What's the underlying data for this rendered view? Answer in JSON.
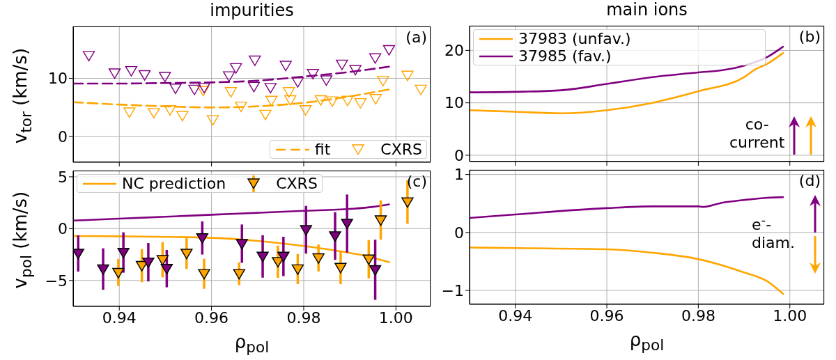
{
  "chart_data": [
    {
      "type": "scatter",
      "title": "impurities",
      "ylabel": "v$_{tor}$ (km/s)",
      "xlim": [
        0.93,
        1.0075
      ],
      "xticks": [
        0.94,
        0.96,
        0.98,
        1
      ],
      "ylim": [
        -4.4,
        18.9
      ],
      "yticks": [
        0,
        10
      ],
      "tick_labels": "y",
      "grid": true,
      "legend": "bottom right",
      "annotations": [
        "(a)"
      ],
      "series": [
        {
          "type": "line",
          "name": "fit",
          "color": "#ffa500",
          "line_style": "dashed",
          "x": [
            0.93,
            0.94,
            0.95,
            0.96,
            0.97,
            0.98,
            0.99,
            0.9985
          ],
          "values": [
            5.9,
            5.5,
            5.2,
            5.0,
            5.2,
            5.8,
            6.9,
            8.1
          ]
        },
        {
          "type": "line",
          "color": "#800080",
          "line_style": "dashed",
          "x": [
            0.93,
            0.94,
            0.95,
            0.96,
            0.97,
            0.98,
            0.99,
            0.9985
          ],
          "values": [
            9.1,
            9.1,
            9.2,
            9.3,
            9.6,
            10.3,
            11.1,
            12.0
          ]
        },
        {
          "name": "CXRS",
          "color": "#ffa500",
          "marker": "triangle",
          "x": [
            0.9422,
            0.9475,
            0.951,
            0.9537,
            0.9582,
            0.9603,
            0.9642,
            0.9664,
            0.9717,
            0.973,
            0.9768,
            0.9771,
            0.9804,
            0.9837,
            0.9862,
            0.9895,
            0.9923,
            0.9956,
            0.9972,
            1.0025,
            1.0054
          ],
          "values": [
            4.2,
            4.1,
            4.6,
            3.6,
            7.9,
            2.9,
            7.7,
            5.2,
            3.8,
            6.2,
            7.7,
            6.3,
            4.6,
            6.3,
            6.1,
            6.2,
            5.8,
            6.5,
            9.6,
            10.5,
            8.1
          ]
        },
        {
          "color": "#800080",
          "marker": "triangle",
          "x": [
            0.9334,
            0.939,
            0.9426,
            0.9455,
            0.9499,
            0.9522,
            0.9563,
            0.9584,
            0.9638,
            0.9653,
            0.9694,
            0.9692,
            0.9728,
            0.9761,
            0.9787,
            0.982,
            0.9849,
            0.9883,
            0.9912,
            0.9955,
            0.9985
          ],
          "values": [
            13.9,
            10.9,
            11.3,
            10.6,
            10.3,
            8.3,
            8.1,
            8.4,
            10.4,
            11.8,
            13.1,
            8.6,
            8.4,
            12.2,
            9.4,
            10.8,
            9.7,
            12.4,
            11.5,
            13.5,
            14.9
          ]
        }
      ]
    },
    {
      "type": "line",
      "title": "main ions",
      "xlim": [
        0.93,
        1.0075
      ],
      "xticks": [
        0.94,
        0.96,
        0.98,
        1
      ],
      "ylim": [
        -1.2,
        24.7
      ],
      "yticks": [
        0,
        10,
        20
      ],
      "tick_labels": "y",
      "grid": true,
      "legend": "top left",
      "annotations": [
        "(b)",
        "co-\ncurrent"
      ],
      "series": [
        {
          "name": "37983 (unfav.)",
          "color": "#ffa500",
          "x": [
            0.93,
            0.94,
            0.95,
            0.96,
            0.97,
            0.98,
            0.99,
            0.9925,
            0.995,
            0.9985
          ],
          "values": [
            8.6,
            8.3,
            8.0,
            8.6,
            10.0,
            12.2,
            14.9,
            16.4,
            17.4,
            19.5
          ]
        },
        {
          "name": "37985 (fav.)",
          "color": "#800080",
          "x": [
            0.93,
            0.94,
            0.95,
            0.96,
            0.97,
            0.98,
            0.985,
            0.99,
            0.995,
            0.9985
          ],
          "values": [
            12.0,
            12.1,
            12.4,
            13.6,
            14.9,
            15.8,
            16.2,
            17.1,
            18.7,
            20.7
          ]
        }
      ]
    },
    {
      "type": "scatter",
      "xlabel": "ρ$_{pol}$",
      "ylabel": "v$_{pol}$ (km/s)",
      "xlim": [
        0.93,
        1.0075
      ],
      "xticks": [
        0.94,
        0.96,
        0.98,
        {
          "value": 1,
          "label": "1.00"
        }
      ],
      "ylim": [
        -7.5,
        5.6
      ],
      "yticks": [
        {
          "value": -5,
          "label": "−5"
        },
        0,
        5
      ],
      "grid": true,
      "legend": "top left",
      "annotations": [
        "(c)"
      ],
      "series": [
        {
          "type": "line",
          "name": "NC prediction",
          "color": "#ffa500",
          "x": [
            0.93,
            0.94,
            0.96,
            0.97,
            0.98,
            0.99,
            0.995,
            0.9985
          ],
          "values": [
            -0.71,
            -0.74,
            -0.89,
            -1.18,
            -1.67,
            -2.34,
            -2.79,
            -3.24
          ]
        },
        {
          "type": "line",
          "color": "#800080",
          "x": [
            0.93,
            0.94,
            0.95,
            0.96,
            0.97,
            0.98,
            0.99,
            0.995,
            0.9985
          ],
          "values": [
            0.78,
            0.96,
            1.15,
            1.34,
            1.53,
            1.72,
            1.9,
            2.1,
            2.34
          ]
        },
        {
          "name": "CXRS",
          "color": "#ffa500",
          "marker": "triangle",
          "x": [
            0.9398,
            0.9449,
            0.9494,
            0.9546,
            0.9584,
            0.966,
            0.9744,
            0.9787,
            0.9832,
            0.988,
            0.9941,
            0.9967,
            1.0025
          ],
          "values": [
            -4.24,
            -3.57,
            -3.0,
            -2.39,
            -4.35,
            -4.35,
            -3.19,
            -3.9,
            -2.83,
            -3.75,
            -2.95,
            0.83,
            2.57
          ],
          "errors": [
            1.3,
            1.6,
            1.7,
            1.5,
            1.45,
            1.1,
            1.55,
            1.45,
            1.3,
            1.6,
            1.85,
            1.9,
            2.1
          ]
        },
        {
          "color": "#800080",
          "marker": "triangle",
          "x": [
            0.9311,
            0.9365,
            0.9409,
            0.9463,
            0.9503,
            0.958,
            0.9666,
            0.9711,
            0.9756,
            0.9805,
            0.9868,
            0.9894,
            0.9955
          ],
          "values": [
            -2.39,
            -3.9,
            -2.3,
            -3.24,
            -3.86,
            -0.9,
            -1.45,
            -2.68,
            -2.68,
            -0.11,
            -0.71,
            0.49,
            -3.97
          ],
          "errors": [
            1.75,
            2.0,
            1.95,
            1.85,
            1.8,
            1.6,
            1.85,
            2.05,
            1.9,
            2.3,
            2.3,
            2.8,
            2.9
          ]
        }
      ]
    },
    {
      "type": "line",
      "xlabel": "ρ$_{pol}$",
      "xlim": [
        0.93,
        1.0075
      ],
      "xticks": [
        0.94,
        0.96,
        0.98,
        {
          "value": 1,
          "label": "1.00"
        }
      ],
      "ylim": [
        -1.24,
        1.08
      ],
      "yticks": [
        {
          "value": -1,
          "label": "−1"
        },
        0,
        1
      ],
      "grid": true,
      "annotations": [
        "(d)",
        "e$^{-}$-\ndiam."
      ],
      "series": [
        {
          "color": "#ffa500",
          "x": [
            0.93,
            0.94,
            0.96,
            0.97,
            0.98,
            0.99,
            0.995,
            0.9985
          ],
          "values": [
            -0.26,
            -0.27,
            -0.29,
            -0.35,
            -0.46,
            -0.69,
            -0.84,
            -1.06
          ]
        },
        {
          "color": "#800080",
          "x": [
            0.93,
            0.94,
            0.96,
            0.97,
            0.98,
            0.981,
            0.985,
            0.99,
            0.995,
            0.9985
          ],
          "values": [
            0.25,
            0.31,
            0.42,
            0.45,
            0.45,
            0.44,
            0.51,
            0.56,
            0.6,
            0.61
          ]
        }
      ]
    }
  ]
}
